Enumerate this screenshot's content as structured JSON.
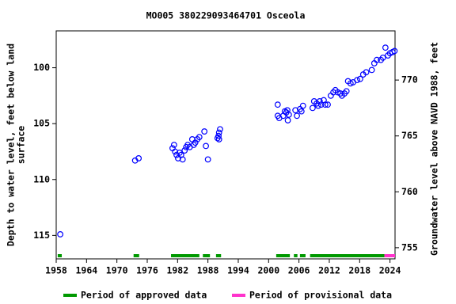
{
  "chart_data": {
    "type": "scatter",
    "title": "MO005 380229093464701 Osceola",
    "ylabel": [
      "Depth to water level, feet below land",
      "surface"
    ],
    "y2label": "Groundwater level above NAVD 1988, feet",
    "xlim": [
      1958,
      2025
    ],
    "xticks": [
      1958,
      1964,
      1970,
      1976,
      1982,
      1988,
      1994,
      2000,
      2006,
      2012,
      2018,
      2024
    ],
    "ylim": [
      96.7,
      117.1
    ],
    "yticks": [
      100,
      105,
      110,
      115
    ],
    "y2lim": [
      774.4,
      754.0
    ],
    "y2ticks": [
      770,
      765,
      760,
      755
    ],
    "x": [
      1958.8,
      1973.6,
      1974.3,
      1981.0,
      1981.3,
      1981.5,
      1981.8,
      1982.1,
      1982.4,
      1982.7,
      1983.0,
      1983.4,
      1983.7,
      1984.0,
      1984.4,
      1984.9,
      1985.2,
      1985.5,
      1985.9,
      1986.3,
      1987.3,
      1987.6,
      1988.0,
      1989.9,
      1990.1,
      1990.2,
      1990.2,
      1990.4,
      2001.8,
      2001.8,
      2002.1,
      2002.9,
      2003.2,
      2003.5,
      2003.7,
      2003.8,
      2004.0,
      2005.3,
      2005.6,
      2006.2,
      2006.5,
      2006.8,
      2008.7,
      2009.0,
      2009.5,
      2009.8,
      2010.1,
      2010.4,
      2010.9,
      2011.2,
      2011.7,
      2012.3,
      2012.8,
      2013.2,
      2013.7,
      2014.2,
      2014.5,
      2015.0,
      2015.4,
      2015.7,
      2016.2,
      2016.7,
      2017.5,
      2018.1,
      2018.7,
      2019.3,
      2020.4,
      2020.9,
      2021.4,
      2022.2,
      2022.6,
      2023.1,
      2023.6,
      2024.0,
      2024.5,
      2024.9
    ],
    "series": [
      {
        "color": "#0000ff",
        "values": [
          114.9,
          108.3,
          108.1,
          107.2,
          106.9,
          107.5,
          107.8,
          108.1,
          107.6,
          107.8,
          108.2,
          107.4,
          107.1,
          106.9,
          107.1,
          106.4,
          106.9,
          106.7,
          106.4,
          106.2,
          105.7,
          107.0,
          108.2,
          106.3,
          106.1,
          105.8,
          106.4,
          105.5,
          103.3,
          104.3,
          104.5,
          104.3,
          103.9,
          104.0,
          103.8,
          104.7,
          104.2,
          103.8,
          104.3,
          103.7,
          103.9,
          103.4,
          103.6,
          103.0,
          103.2,
          103.4,
          103.0,
          103.3,
          102.9,
          103.3,
          103.3,
          102.5,
          102.2,
          102.0,
          102.2,
          102.3,
          102.5,
          102.3,
          102.1,
          101.2,
          101.4,
          101.3,
          101.1,
          101.0,
          100.6,
          100.4,
          100.2,
          99.6,
          99.3,
          99.3,
          99.1,
          98.2,
          98.9,
          98.7,
          98.6,
          98.5
        ]
      }
    ],
    "periods": [
      {
        "name": "Period of approved data",
        "color": "#009900",
        "ranges": [
          [
            1958.3,
            1959.1
          ],
          [
            1973.3,
            1974.4
          ],
          [
            1980.7,
            1986.3
          ],
          [
            1987.0,
            1988.4
          ],
          [
            1989.6,
            1990.6
          ],
          [
            2001.5,
            2004.2
          ],
          [
            2005.0,
            2005.7
          ],
          [
            2006.2,
            2007.3
          ],
          [
            2008.2,
            2022.9
          ]
        ]
      },
      {
        "name": "Period of provisional data",
        "color": "#ff33cc",
        "ranges": [
          [
            2022.9,
            2025
          ]
        ]
      }
    ]
  }
}
